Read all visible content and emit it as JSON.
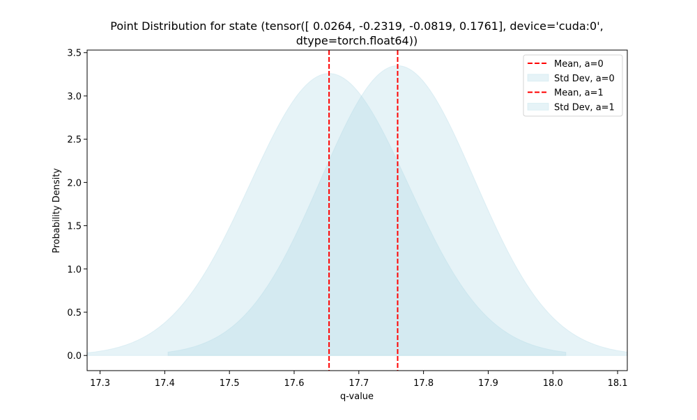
{
  "chart_data": {
    "type": "area",
    "title_line1": "Point Distribution for state (tensor([ 0.0264, -0.2319, -0.0819,  0.1761], device='cuda:0',",
    "title_line2": "dtype=torch.float64))",
    "xlabel": "q-value",
    "ylabel": "Probability Density",
    "xlim": [
      17.28,
      18.115
    ],
    "ylim": [
      -0.175,
      3.53
    ],
    "xticks": [
      17.3,
      17.4,
      17.5,
      17.6,
      17.7,
      17.8,
      17.9,
      18.0,
      18.1
    ],
    "xtick_labels": [
      "17.3",
      "17.4",
      "17.5",
      "17.6",
      "17.7",
      "17.8",
      "17.9",
      "18.0",
      "18.1"
    ],
    "yticks": [
      0.0,
      0.5,
      1.0,
      1.5,
      2.0,
      2.5,
      3.0,
      3.5
    ],
    "ytick_labels": [
      "0.0",
      "0.5",
      "1.0",
      "1.5",
      "2.0",
      "2.5",
      "3.0",
      "3.5"
    ],
    "grid": false,
    "legend_position": "top-right",
    "series": [
      {
        "name": "Std Dev, a=0",
        "mean_label": "Mean, a=0",
        "mean": 17.654,
        "std": 0.1225,
        "x_range": [
          17.28,
          18.02
        ],
        "peak_density": 3.26,
        "fill_color": "#add8e6"
      },
      {
        "name": "Std Dev, a=1",
        "mean_label": "Mean, a=1",
        "mean": 17.76,
        "std": 0.119,
        "x_range": [
          17.405,
          18.115
        ],
        "peak_density": 3.35,
        "fill_color": "#add8e6"
      }
    ],
    "mean_line_color": "#ff0000",
    "legend": [
      {
        "label": "Mean, a=0",
        "kind": "line"
      },
      {
        "label": "Std Dev, a=0",
        "kind": "patch"
      },
      {
        "label": "Mean, a=1",
        "kind": "line"
      },
      {
        "label": "Std Dev, a=1",
        "kind": "patch"
      }
    ]
  }
}
